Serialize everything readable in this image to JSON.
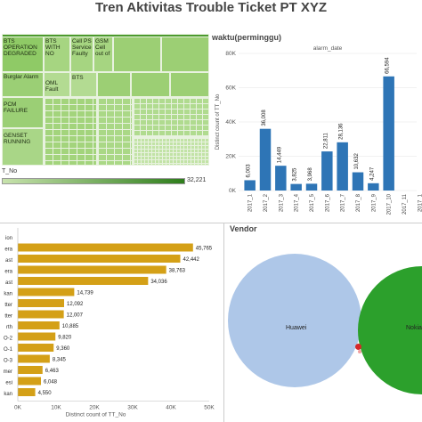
{
  "title": "Tren Aktivitas Trouble Ticket PT XYZ",
  "treemap": {
    "cells": [
      {
        "label": "BTS OPERATION DEGRADED",
        "color": "#8fca66"
      },
      {
        "label": "BTS WITH NO",
        "color": "#a6d581"
      },
      {
        "label": "Cell PS Service Faulty",
        "color": "#a6d581"
      },
      {
        "label": "GSM Cell out of",
        "color": "#a6d581"
      },
      {
        "label": "Burglar Alarm",
        "color": "#9bcf75"
      },
      {
        "label": "OML Fault",
        "color": "#b3db92"
      },
      {
        "label": "BTS",
        "color": "#b3db92"
      },
      {
        "label": "PCM FAILURE",
        "color": "#9bcf75"
      },
      {
        "label": "GENSET RUNNING",
        "color": "#a9d687"
      }
    ],
    "top_color": "#4c9a2e",
    "legend_label": "T_No",
    "legend_max": "32,221"
  },
  "waktu": {
    "title": "waktu(perminggu)",
    "chart_data": {
      "type": "bar",
      "title": "alarm_date",
      "ylabel": "Distinct count of TT_No",
      "categories": [
        "2017_1",
        "2017_2",
        "2017_3",
        "2017_4",
        "2017_5",
        "2017_6",
        "2017_7",
        "2017_8",
        "2017_9",
        "2017_10",
        "2017_11",
        "2017_1"
      ],
      "values": [
        6003,
        36008,
        14449,
        3825,
        3968,
        22811,
        28136,
        10632,
        4247,
        66594,
        0,
        0
      ],
      "data_labels": [
        "6,003",
        "36,008",
        "14,449",
        "3,825",
        "3,968",
        "22,811",
        "28,136",
        "10,632",
        "4,247",
        "66,594",
        "",
        ""
      ],
      "ylim": [
        0,
        80000
      ],
      "yticks": [
        "0K",
        "20K",
        "40K",
        "60K",
        "80K"
      ],
      "color": "#2e75b6"
    }
  },
  "region": {
    "chart_data": {
      "type": "bar",
      "xlabel": "Distinct count of TT_No",
      "categories": [
        "ion",
        "era",
        "ast",
        "era",
        "ast",
        "kan",
        "tter",
        "tter",
        "rth",
        "O-2",
        "O-1",
        "O-3",
        "mer",
        "esi",
        "kan"
      ],
      "values": [
        null,
        45765,
        42442,
        38763,
        34036,
        14739,
        12092,
        12007,
        10885,
        9820,
        9360,
        8345,
        6463,
        6048,
        4550
      ],
      "data_labels": [
        "",
        "45,765",
        "42,442",
        "38,763",
        "34,036",
        "14,739",
        "12,092",
        "12,007",
        "10,885",
        "9,820",
        "9,360",
        "8,345",
        "6,463",
        "6,048",
        "4,550"
      ],
      "xlim": [
        0,
        50000
      ],
      "xticks": [
        "0K",
        "10K",
        "20K",
        "30K",
        "40K",
        "50K"
      ],
      "color": "#d4a017"
    }
  },
  "vendor": {
    "title": "Vendor",
    "items": [
      {
        "label": "Huawei",
        "color": "#aec7e8"
      },
      {
        "label": "Nokia",
        "color": "#2ca02c"
      }
    ]
  }
}
